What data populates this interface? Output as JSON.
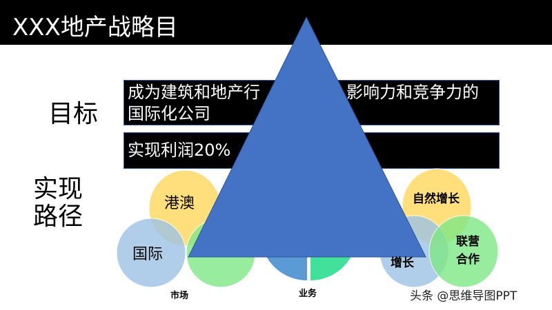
{
  "title": "XXX地产战略目",
  "goal_label": "目标",
  "path_label": [
    "实现",
    "路径"
  ],
  "goal_box": {
    "line1_left": "成为建筑和地产行",
    "line1_right": "影响力和竞争力的",
    "line2": "国际化公司"
  },
  "profit_box": {
    "text": "实现利润20%"
  },
  "market": {
    "label": "市场",
    "circles": [
      "港澳",
      "国际"
    ]
  },
  "business": {
    "label": "业务"
  },
  "growth": {
    "circles": [
      "自然增长",
      "增长",
      "联营合作"
    ]
  },
  "watermark": "头条 @思维导图PPT",
  "colors": {
    "yellow": "#ffd966",
    "blue": "#9dc3e6",
    "green": "#7fe885",
    "triangle": "#4472c4",
    "pie_blue": "#5b9bd5",
    "pie_green": "#41e09b"
  }
}
